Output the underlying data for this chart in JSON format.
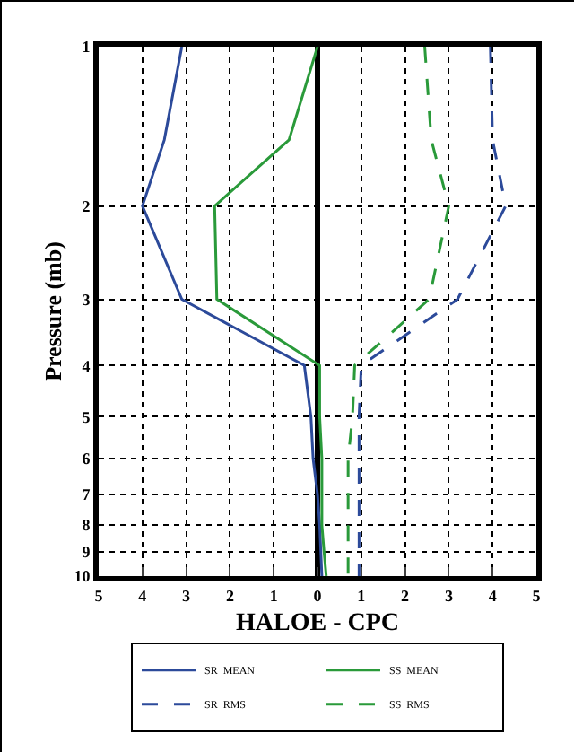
{
  "chart_data": {
    "type": "line",
    "xlabel": "HALOE - CPC",
    "ylabel": "Pressure (mb)",
    "xlim": [
      -5,
      5
    ],
    "xticks": [
      {
        "value": -5,
        "label": "5"
      },
      {
        "value": -4,
        "label": "4"
      },
      {
        "value": -3,
        "label": "3"
      },
      {
        "value": -2,
        "label": "2"
      },
      {
        "value": -1,
        "label": "1"
      },
      0,
      1,
      2,
      3,
      4,
      5
    ],
    "ylim": [
      10,
      1
    ],
    "yticks": [
      1,
      2,
      3,
      4,
      5,
      6,
      7,
      8,
      9,
      10
    ],
    "log": "y",
    "grid": true,
    "legend": "bottom",
    "marker": "none",
    "series": [
      {
        "name": "SR  MEAN",
        "color": "#2c4a9a",
        "line_style": "solid",
        "x": [
          -3.1,
          -3.5,
          -4.0,
          -3.1,
          -0.3,
          -0.15,
          -0.1,
          0,
          0.05,
          0.1
        ],
        "values": [
          1,
          1.5,
          2,
          3,
          4,
          5,
          6,
          7,
          8,
          10
        ]
      },
      {
        "name": "SS  MEAN",
        "color": "#2a9a3a",
        "line_style": "solid",
        "x": [
          0,
          -0.65,
          -2.35,
          -2.3,
          0.05,
          0.05,
          0.1,
          0.1,
          0.15,
          0.2
        ],
        "values": [
          1,
          1.5,
          2,
          3,
          4,
          5,
          6,
          8,
          9,
          10
        ]
      },
      {
        "name": "SR  RMS",
        "color": "#2c4a9a",
        "line_style": "dashed",
        "x": [
          3.95,
          4.0,
          4.3,
          3.2,
          1.0,
          0.95,
          0.95
        ],
        "values": [
          1,
          1.5,
          2,
          3,
          4,
          5,
          10
        ]
      },
      {
        "name": "SS  RMS",
        "color": "#2a9a3a",
        "line_style": "dashed",
        "x": [
          2.45,
          2.6,
          3.0,
          2.55,
          0.85,
          0.8,
          0.7,
          0.7
        ],
        "values": [
          1,
          1.5,
          2,
          3,
          4,
          5,
          6,
          10
        ]
      }
    ]
  }
}
